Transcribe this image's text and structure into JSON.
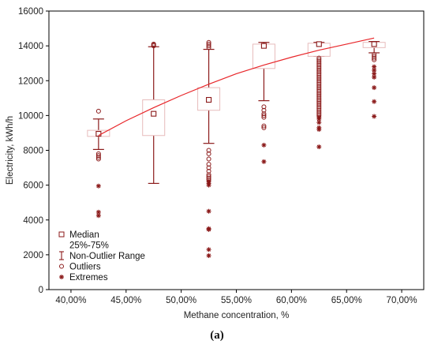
{
  "caption": "(a)",
  "chart_data": {
    "type": "box",
    "xlabel": "Methane concentration, %",
    "ylabel": "Electricity, kWh/h",
    "xlim": [
      0.38,
      0.72
    ],
    "ylim": [
      0,
      16000
    ],
    "x_ticks": [
      0.4,
      0.45,
      0.5,
      0.55,
      0.6,
      0.65,
      0.7
    ],
    "x_tick_labels": [
      "40,00%",
      "45,00%",
      "50,00%",
      "55,00%",
      "60,00%",
      "65,00%",
      "70,00%"
    ],
    "y_ticks": [
      0,
      2000,
      4000,
      6000,
      8000,
      10000,
      12000,
      14000,
      16000
    ],
    "y_tick_labels": [
      "0",
      "2000",
      "4000",
      "6000",
      "8000",
      "10000",
      "12000",
      "14000",
      "16000"
    ],
    "grid": false,
    "legend_position": "bottom-left",
    "legend": [
      "Median",
      "25%-75%",
      "Non-Outlier Range",
      "Outliers",
      "Extremes"
    ],
    "colors": {
      "main": "#8b1a1a",
      "box": "#e7bcbc",
      "fit": "#e8262a"
    },
    "boxes": [
      {
        "x": 0.425,
        "median": 8950,
        "q1": 8800,
        "q3": 9150,
        "whisker_low": 8050,
        "whisker_high": 9800,
        "outliers": [
          10250,
          7600,
          7700,
          7800,
          7500
        ],
        "extremes": [
          5950,
          4450,
          4250
        ]
      },
      {
        "x": 0.475,
        "median": 10100,
        "q1": 8850,
        "q3": 10900,
        "whisker_low": 6100,
        "whisker_high": 13950,
        "outliers": [
          14000,
          14050,
          14100
        ],
        "extremes": []
      },
      {
        "x": 0.525,
        "median": 10900,
        "q1": 10300,
        "q3": 11600,
        "whisker_low": 8400,
        "whisker_high": 13800,
        "outliers": [
          8000,
          7800,
          7500,
          7200,
          7000,
          6800,
          6600,
          6500,
          6400,
          6300,
          13900,
          14000,
          14100,
          14200
        ],
        "extremes": [
          6200,
          6100,
          6000,
          4500,
          3500,
          3450,
          2300,
          1950
        ]
      },
      {
        "x": 0.575,
        "median": 14000,
        "q1": 12700,
        "q3": 14100,
        "whisker_low": 10850,
        "whisker_high": 14200,
        "outliers": [
          10500,
          10300,
          10100,
          10000,
          9900,
          9400,
          9300
        ],
        "extremes": [
          8300,
          7350
        ]
      },
      {
        "x": 0.625,
        "median": 14100,
        "q1": 13400,
        "q3": 14150,
        "whisker_low": 13400,
        "whisker_high": 14200,
        "outliers": [
          13300,
          13200,
          13100,
          13000,
          12900,
          12800,
          12700,
          12600,
          12500,
          12400,
          12300,
          12200,
          12100,
          12000,
          11900,
          11800,
          11700,
          11600,
          11500,
          11400,
          11300,
          11200,
          11100,
          11000,
          10900,
          10800,
          10700,
          10600,
          10500,
          10400,
          10300,
          10200,
          10100,
          10000
        ],
        "extremes": [
          9900,
          9800,
          9600,
          9300,
          9200,
          8200
        ]
      },
      {
        "x": 0.675,
        "median": 14100,
        "q1": 13900,
        "q3": 14200,
        "whisker_low": 13600,
        "whisker_high": 14250,
        "outliers": [
          13500,
          13400,
          13300,
          13200
        ],
        "extremes": [
          12800,
          12600,
          12400,
          12200,
          11600,
          10800,
          9950
        ]
      }
    ],
    "fit_curve": {
      "x": [
        0.425,
        0.45,
        0.475,
        0.5,
        0.525,
        0.55,
        0.575,
        0.6,
        0.625,
        0.65,
        0.675
      ],
      "y": [
        8850,
        9700,
        10450,
        11150,
        11800,
        12400,
        12900,
        13350,
        13750,
        14100,
        14450
      ]
    }
  }
}
